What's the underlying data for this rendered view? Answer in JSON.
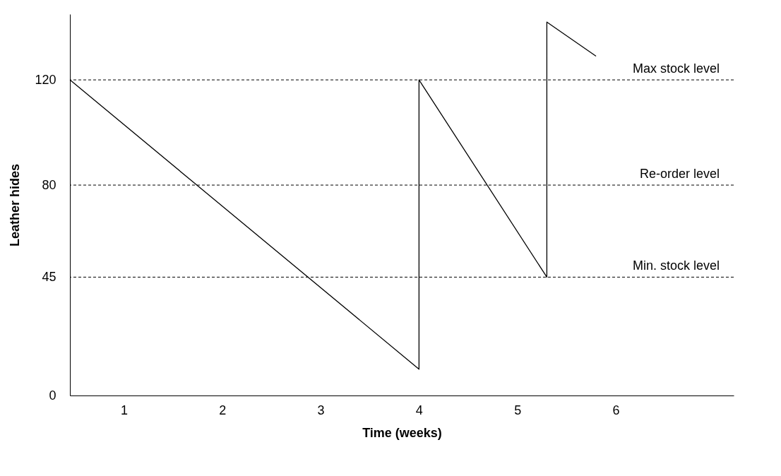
{
  "chart_data": {
    "type": "line",
    "xlabel": "Time (weeks)",
    "ylabel": "Leather hides",
    "x": [
      0.45,
      4,
      4,
      5.3,
      5.3,
      5.8
    ],
    "series": [
      {
        "color": "#000000",
        "values": [
          120,
          10,
          120,
          45,
          142,
          129
        ]
      }
    ],
    "xlim": [
      0.45,
      7.2
    ],
    "xticks": [
      1,
      2,
      3,
      4,
      5,
      6
    ],
    "ylim": [
      0,
      145
    ],
    "yticks": [
      0,
      45,
      80,
      120
    ],
    "grid": false,
    "marker": "none",
    "line_style": "solid",
    "ref_lines": [
      {
        "axis": "y",
        "value": 120,
        "label": "Max stock level",
        "line_style": "dashed",
        "color": "#000000"
      },
      {
        "axis": "y",
        "value": 80,
        "label": "Re-order level",
        "line_style": "dashed",
        "color": "#000000"
      },
      {
        "axis": "y",
        "value": 45,
        "label": "Min. stock level",
        "line_style": "dashed",
        "color": "#000000"
      }
    ]
  }
}
